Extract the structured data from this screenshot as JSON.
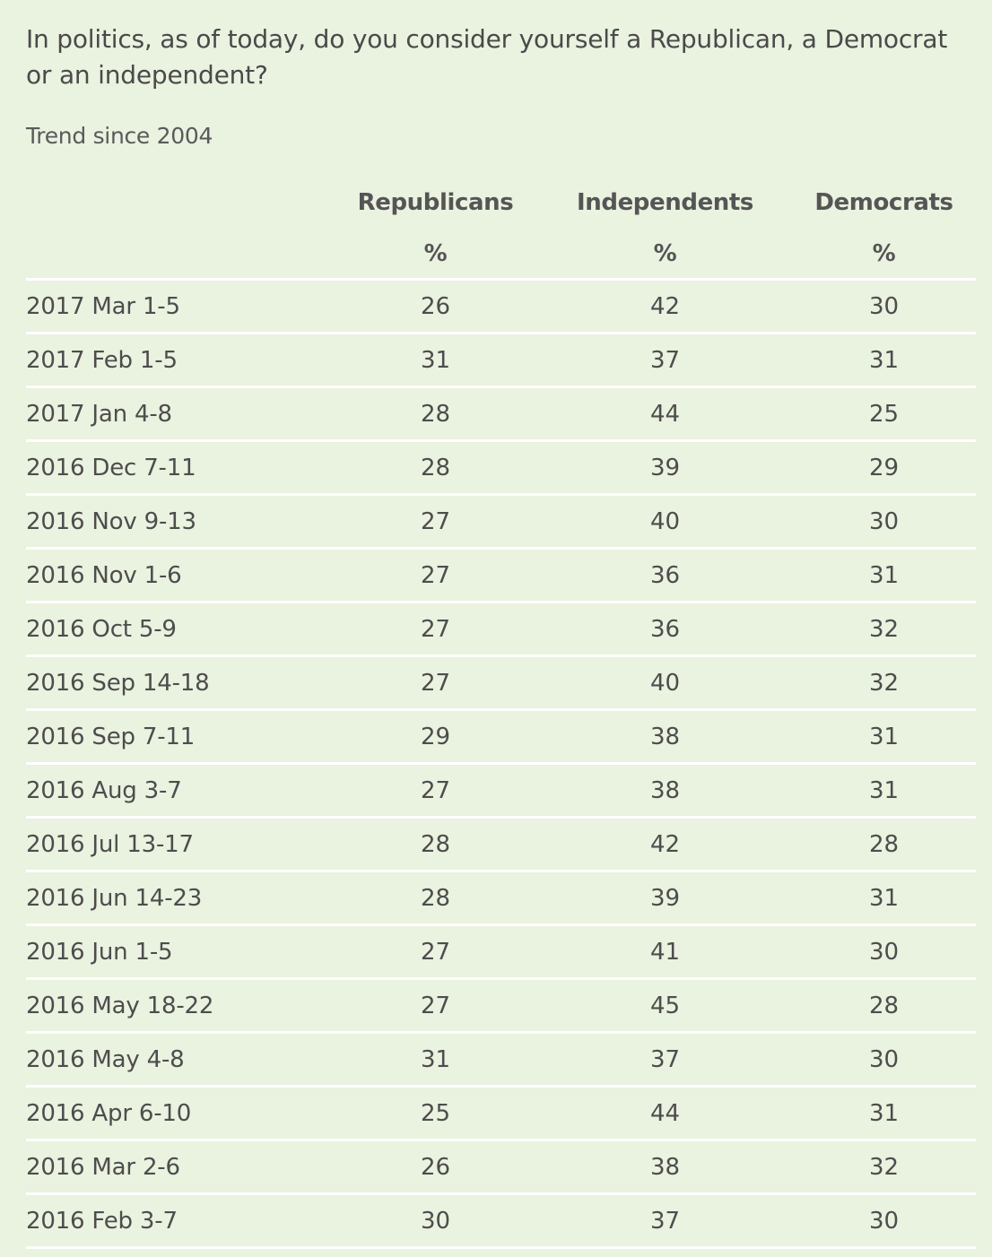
{
  "question": "In politics, as of today, do you consider yourself a Republican, a Democrat or an independent?",
  "subtitle": "Trend since 2004",
  "table": {
    "columns": [
      {
        "label": "Republicans",
        "unit": "%"
      },
      {
        "label": "Independents",
        "unit": "%"
      },
      {
        "label": "Democrats",
        "unit": "%"
      }
    ],
    "rows": [
      {
        "date": "2017 Mar 1-5",
        "rep": "26",
        "ind": "42",
        "dem": "30"
      },
      {
        "date": "2017 Feb 1-5",
        "rep": "31",
        "ind": "37",
        "dem": "31"
      },
      {
        "date": "2017 Jan 4-8",
        "rep": "28",
        "ind": "44",
        "dem": "25"
      },
      {
        "date": "2016 Dec 7-11",
        "rep": "28",
        "ind": "39",
        "dem": "29"
      },
      {
        "date": "2016 Nov 9-13",
        "rep": "27",
        "ind": "40",
        "dem": "30"
      },
      {
        "date": "2016 Nov 1-6",
        "rep": "27",
        "ind": "36",
        "dem": "31"
      },
      {
        "date": "2016 Oct 5-9",
        "rep": "27",
        "ind": "36",
        "dem": "32"
      },
      {
        "date": "2016 Sep 14-18",
        "rep": "27",
        "ind": "40",
        "dem": "32"
      },
      {
        "date": "2016 Sep 7-11",
        "rep": "29",
        "ind": "38",
        "dem": "31"
      },
      {
        "date": "2016 Aug 3-7",
        "rep": "27",
        "ind": "38",
        "dem": "31"
      },
      {
        "date": "2016 Jul 13-17",
        "rep": "28",
        "ind": "42",
        "dem": "28"
      },
      {
        "date": "2016 Jun 14-23",
        "rep": "28",
        "ind": "39",
        "dem": "31"
      },
      {
        "date": "2016 Jun 1-5",
        "rep": "27",
        "ind": "41",
        "dem": "30"
      },
      {
        "date": "2016 May 18-22",
        "rep": "27",
        "ind": "45",
        "dem": "28"
      },
      {
        "date": "2016 May 4-8",
        "rep": "31",
        "ind": "37",
        "dem": "30"
      },
      {
        "date": "2016 Apr 6-10",
        "rep": "25",
        "ind": "44",
        "dem": "31"
      },
      {
        "date": "2016 Mar 2-6",
        "rep": "26",
        "ind": "38",
        "dem": "32"
      },
      {
        "date": "2016 Feb 3-7",
        "rep": "30",
        "ind": "37",
        "dem": "30"
      }
    ]
  },
  "colors": {
    "background": "#eaf2e0",
    "rule": "#ffffff",
    "text": "#4d4d4d"
  }
}
